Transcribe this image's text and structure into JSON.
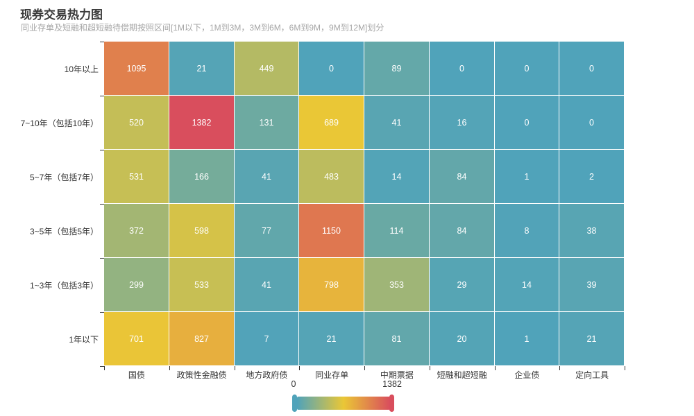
{
  "chart_data": {
    "type": "heatmap",
    "title": "现券交易热力图",
    "subtitle": "同业存单及短融和超短融待偿期按照区间[1M以下，1M到3M，3M到6M，6M到9M，9M到12M]划分",
    "x_categories": [
      "国债",
      "政策性金融债",
      "地方政府债",
      "同业存单",
      "中期票据",
      "短融和超短融",
      "企业债",
      "定向工具"
    ],
    "y_categories_top_to_bottom": [
      "10年以上",
      "7~10年（包括10年）",
      "5~7年（包括7年）",
      "3~5年（包括5年）",
      "1~3年（包括3年）",
      "1年以下"
    ],
    "values_rows_top_to_bottom": [
      [
        1095,
        21,
        449,
        0,
        89,
        0,
        0,
        0
      ],
      [
        520,
        1382,
        131,
        689,
        41,
        16,
        0,
        0
      ],
      [
        531,
        166,
        41,
        483,
        14,
        84,
        1,
        2
      ],
      [
        372,
        598,
        77,
        1150,
        114,
        84,
        8,
        38
      ],
      [
        299,
        533,
        41,
        798,
        353,
        29,
        14,
        39
      ],
      [
        701,
        827,
        7,
        21,
        81,
        20,
        1,
        21
      ]
    ],
    "visual_map": {
      "min": 0,
      "max": 1382,
      "min_label": "0",
      "max_label": "1382",
      "gradient": [
        "#50a3ba",
        "#eac736",
        "#d94e5d"
      ],
      "legend_position": "bottom-center"
    },
    "cell_label_color": "#ffffff",
    "axis_label_color": "#333333",
    "title_color": "#3b3b3b",
    "subtitle_color": "#a6a6a6",
    "grid_on": false,
    "legend_on": true
  }
}
